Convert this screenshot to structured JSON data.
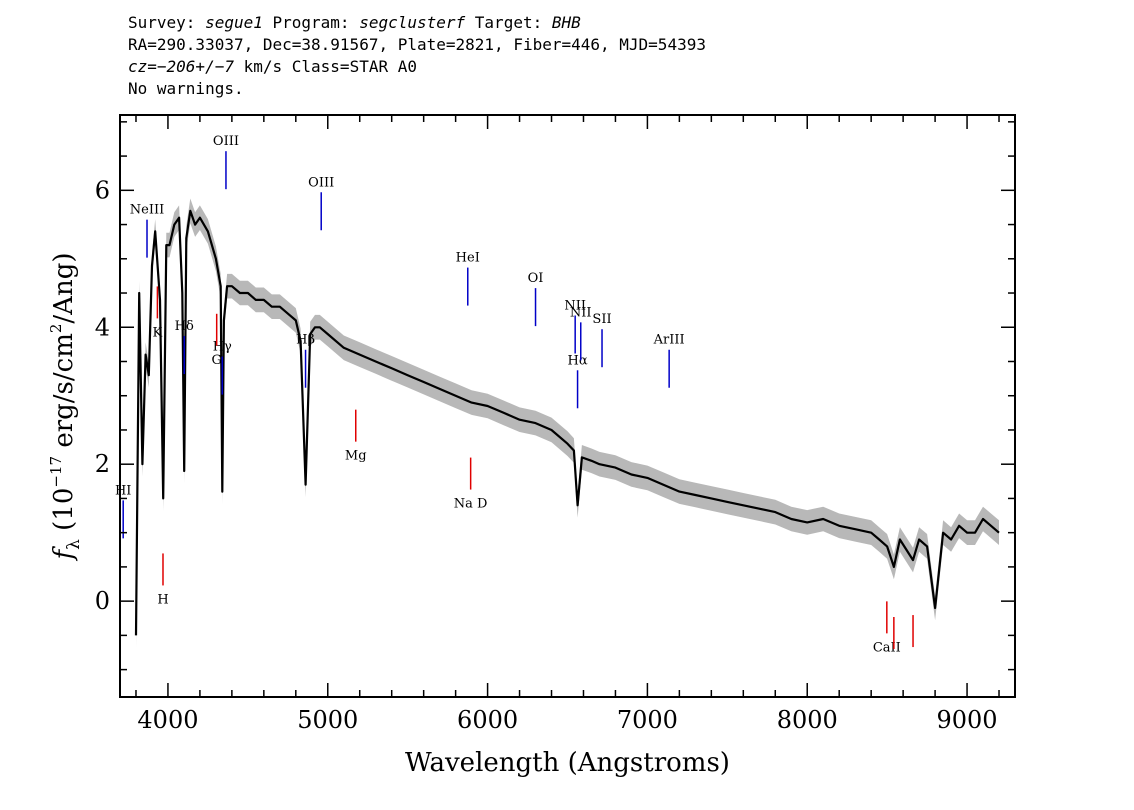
{
  "header": {
    "line1_prefix_survey": "Survey: ",
    "survey": "segue1",
    "line1_prefix_program": " Program: ",
    "program": "segclusterf",
    "line1_prefix_target": " Target: ",
    "target": "BHB",
    "line2": "RA=290.33037, Dec=38.91567, Plate=2821, Fiber=446, MJD=54393",
    "cz": "cz=−206+/−7",
    "line3_rest": " km/s Class=STAR A0",
    "line4": "No warnings."
  },
  "chart_data": {
    "type": "line",
    "title": "",
    "xlabel": "Wavelength (Angstroms)",
    "ylabel_parts": {
      "f": "f",
      "sub": "λ",
      "open": " (10",
      "exp": "−17",
      "mid": " erg/s/cm",
      "exp2": "2",
      "close": "/Ang)"
    },
    "xlim": [
      3700,
      9300
    ],
    "ylim": [
      -1.4,
      7.1
    ],
    "x_ticks": [
      4000,
      5000,
      6000,
      7000,
      8000,
      9000
    ],
    "x_tick_labels": [
      "4000",
      "5000",
      "6000",
      "7000",
      "8000",
      "9000"
    ],
    "y_ticks": [
      0,
      2,
      4,
      6
    ],
    "y_tick_labels": [
      "0",
      "2",
      "4",
      "6"
    ],
    "series": [
      {
        "kind": "flux",
        "color": "#000000",
        "x": [
          3800,
          3820,
          3840,
          3860,
          3880,
          3900,
          3920,
          3950,
          3970,
          3990,
          4010,
          4040,
          4070,
          4090,
          4102,
          4115,
          4140,
          4170,
          4200,
          4250,
          4300,
          4330,
          4340,
          4350,
          4370,
          4400,
          4450,
          4500,
          4550,
          4600,
          4650,
          4700,
          4750,
          4800,
          4830,
          4861,
          4890,
          4920,
          4950,
          5000,
          5100,
          5200,
          5300,
          5400,
          5500,
          5600,
          5700,
          5800,
          5900,
          6000,
          6100,
          6200,
          6300,
          6400,
          6500,
          6540,
          6563,
          6590,
          6650,
          6700,
          6800,
          6900,
          7000,
          7100,
          7200,
          7300,
          7400,
          7500,
          7600,
          7700,
          7800,
          7900,
          8000,
          8100,
          8200,
          8300,
          8400,
          8450,
          8500,
          8542,
          8580,
          8662,
          8700,
          8750,
          8800,
          8850,
          8900,
          8950,
          9000,
          9050,
          9100,
          9150,
          9200
        ],
        "y": [
          -0.5,
          4.5,
          2.0,
          3.6,
          3.3,
          4.9,
          5.4,
          4.4,
          1.5,
          5.2,
          5.2,
          5.5,
          5.6,
          4.5,
          1.9,
          5.3,
          5.7,
          5.5,
          5.6,
          5.4,
          5.0,
          4.6,
          1.6,
          4.1,
          4.6,
          4.6,
          4.5,
          4.5,
          4.4,
          4.4,
          4.3,
          4.3,
          4.2,
          4.1,
          3.8,
          1.7,
          3.9,
          4.0,
          4.0,
          3.9,
          3.7,
          3.6,
          3.5,
          3.4,
          3.3,
          3.2,
          3.1,
          3.0,
          2.9,
          2.85,
          2.75,
          2.65,
          2.6,
          2.5,
          2.3,
          2.2,
          1.4,
          2.1,
          2.05,
          2.0,
          1.95,
          1.85,
          1.8,
          1.7,
          1.6,
          1.55,
          1.5,
          1.45,
          1.4,
          1.35,
          1.3,
          1.2,
          1.15,
          1.2,
          1.1,
          1.05,
          1.0,
          0.9,
          0.8,
          0.5,
          0.9,
          0.6,
          0.9,
          0.8,
          -0.1,
          1.0,
          0.9,
          1.1,
          1.0,
          1.0,
          1.2,
          1.1,
          1.0
        ]
      },
      {
        "kind": "error-envelope",
        "color": "#b8b8b8",
        "half_width": 0.18
      }
    ],
    "emission_lines": [
      {
        "label": "HI",
        "x": 3720
      },
      {
        "label": "NeIII",
        "x": 3869
      },
      {
        "label": "Hδ",
        "x": 4102
      },
      {
        "label": "Hγ",
        "x": 4340
      },
      {
        "label": "OIII",
        "x": 4363
      },
      {
        "label": "Hβ",
        "x": 4861
      },
      {
        "label": "OIII",
        "x": 4959
      },
      {
        "label": "HeI",
        "x": 5876
      },
      {
        "label": "OI",
        "x": 6300
      },
      {
        "label": "NII",
        "x": 6548
      },
      {
        "label": "Hα",
        "x": 6563
      },
      {
        "label": "NII",
        "x": 6583
      },
      {
        "label": "SII",
        "x": 6716
      },
      {
        "label": "ArIII",
        "x": 7136
      }
    ],
    "absorption_lines": [
      {
        "label": "K",
        "x": 3934
      },
      {
        "label": "H",
        "x": 3969
      },
      {
        "label": "G",
        "x": 4305
      },
      {
        "label": "Mg",
        "x": 5175
      },
      {
        "label": "Na D",
        "x": 5894
      },
      {
        "label": "CaII",
        "x": 8498
      },
      {
        "label": "",
        "x": 8542
      },
      {
        "label": "",
        "x": 8662
      }
    ],
    "emission_color": "#0000c8",
    "absorption_color": "#e00000"
  }
}
